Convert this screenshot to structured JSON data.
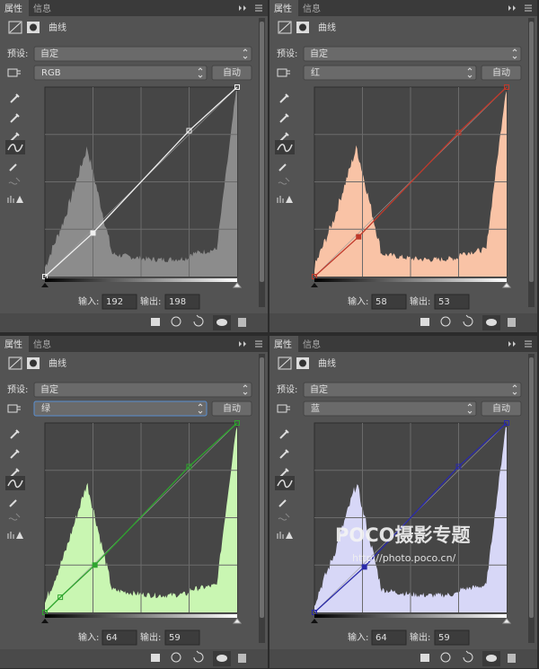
{
  "panels": [
    {
      "tabs": [
        "属性",
        "信息"
      ],
      "title": "曲线",
      "preset_label": "预设:",
      "preset": "自定",
      "channel": "RGB",
      "auto": "自动",
      "input_label": "输入:",
      "input": 192,
      "output_label": "输出:",
      "output": 198
    },
    {
      "tabs": [
        "属性",
        "信息"
      ],
      "title": "曲线",
      "preset_label": "预设:",
      "preset": "自定",
      "channel": "红",
      "auto": "自动",
      "input_label": "输入:",
      "input": 58,
      "output_label": "输出:",
      "output": 53
    },
    {
      "tabs": [
        "属性",
        "信息"
      ],
      "title": "曲线",
      "preset_label": "预设:",
      "preset": "自定",
      "channel": "绿",
      "auto": "自动",
      "input_label": "输入:",
      "input": 64,
      "output_label": "输出:",
      "output": 59
    },
    {
      "tabs": [
        "属性",
        "信息"
      ],
      "title": "曲线",
      "preset_label": "预设:",
      "preset": "自定",
      "channel": "蓝",
      "auto": "自动",
      "input_label": "输入:",
      "input": 64,
      "output_label": "输出:",
      "output": 59
    }
  ],
  "watermark": {
    "logo": "POCO摄影专题",
    "url": "http://photo.poco.cn/"
  }
}
